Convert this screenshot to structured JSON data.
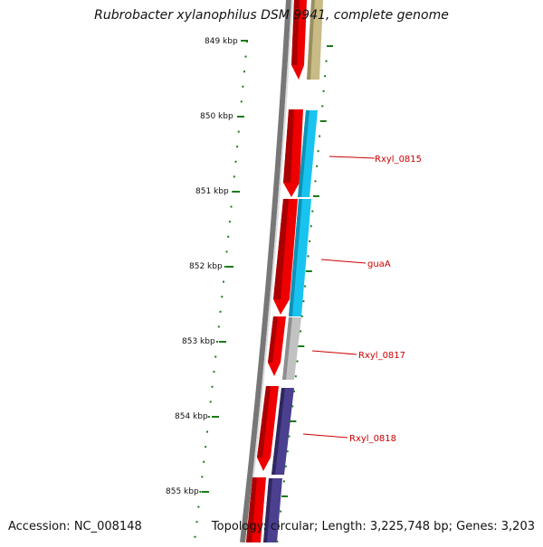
{
  "title": "Rubrobacter xylanophilus DSM 9941, complete genome",
  "footer": {
    "accession": "Accession: NC_008148",
    "topology": "Topology: circular; Length: 3,225,748 bp; Genes: 3,203"
  },
  "ruler": {
    "ticks": [
      "849 kbp",
      "850 kbp",
      "851 kbp",
      "852 kbp",
      "853 kbp",
      "854 kbp",
      "855 kbp"
    ]
  },
  "gene_labels": [
    {
      "name": "Rxyl_0815"
    },
    {
      "name": "guaA"
    },
    {
      "name": "Rxyl_0817"
    },
    {
      "name": "Rxyl_0818"
    }
  ],
  "colors": {
    "cds": "#ee0000",
    "tick": "#1a7a1a",
    "backbone": "#777777",
    "label": "#cc0000",
    "track_olive": "#c8bb86",
    "track_cyan": "#19c3f0",
    "track_gray": "#c2c2c2",
    "track_purple": "#4b3f8f"
  }
}
